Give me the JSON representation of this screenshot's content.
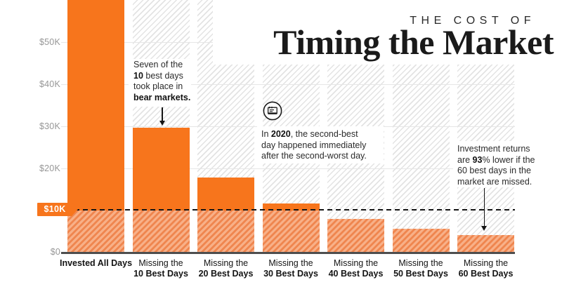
{
  "header": {
    "kicker": "THE COST OF",
    "title": "Timing the Market"
  },
  "chart_data": {
    "type": "bar",
    "title": "The Cost of Timing the Market",
    "categories": [
      "Invested All Days",
      "Missing the 10 Best Days",
      "Missing the 20 Best Days",
      "Missing the 30 Best Days",
      "Missing the 40 Best Days",
      "Missing the 50 Best Days",
      "Missing the 60 Best Days"
    ],
    "values": [
      65000,
      29700,
      17800,
      11700,
      8000,
      5700,
      4200
    ],
    "value_note": "Values estimated from $10K gridlines; first bar extends past the cropped top of the chart",
    "xlabel": "",
    "ylabel": "",
    "ylim": [
      0,
      60000
    ],
    "y_ticks": [
      "$0",
      "$10K",
      "$20K",
      "$30K",
      "$40K",
      "$50K"
    ],
    "grid": true,
    "reference_line": {
      "value": 10000,
      "label": "$10K",
      "style": "dashed-black"
    },
    "hatched_below_value": 10000
  },
  "x_axis": {
    "labels": [
      {
        "line1": "Invested All Days",
        "line2": ""
      },
      {
        "line1": "Missing the",
        "line2": "10 Best Days"
      },
      {
        "line1": "Missing the",
        "line2": "20 Best Days"
      },
      {
        "line1": "Missing the",
        "line2": "30 Best Days"
      },
      {
        "line1": "Missing the",
        "line2": "40 Best Days"
      },
      {
        "line1": "Missing the",
        "line2": "50 Best Days"
      },
      {
        "line1": "Missing the",
        "line2": "60 Best Days"
      }
    ]
  },
  "y_axis": {
    "gridline_labels": [
      {
        "text": "$50K",
        "value": 50000
      },
      {
        "text": "$40K",
        "value": 40000
      },
      {
        "text": "$30K",
        "value": 30000
      },
      {
        "text": "$20K",
        "value": 20000
      }
    ],
    "zero_label": {
      "text": "$0",
      "value": 0
    },
    "badge": {
      "text": "$10K",
      "value": 10000
    }
  },
  "annotations": [
    {
      "id": "bear-markets",
      "segments": [
        [
          "Seven of the\n",
          false
        ],
        [
          "10",
          true
        ],
        [
          " best days\ntook place in\n",
          false
        ],
        [
          "bear markets.",
          true
        ]
      ]
    },
    {
      "id": "year-2020",
      "segments": [
        [
          "In ",
          false
        ],
        [
          "2020",
          true
        ],
        [
          ", the second-best\nday happened immediately\nafter the second-worst day.",
          false
        ]
      ]
    },
    {
      "id": "returns-93",
      "segments": [
        [
          "Investment returns\nare ",
          false
        ],
        [
          "93",
          true
        ],
        [
          "% lower if the\n60 best days in the\nmarket are missed.",
          false
        ]
      ]
    }
  ],
  "icon": {
    "name": "newspaper-calendar-icon"
  },
  "colors": {
    "bar_solid": "#f7751c",
    "bar_hatch_light": "#f8b088",
    "bar_hatch_dark": "#ef864f",
    "background_hatch": "#e3e3e3",
    "gridline": "#e6e6e6",
    "axis": "#4e4e4e",
    "y_label": "#979797",
    "dashed_line": "#141414",
    "badge_bg": "#f7751c",
    "badge_text": "#ffffff",
    "text": "#2b2b2b"
  }
}
